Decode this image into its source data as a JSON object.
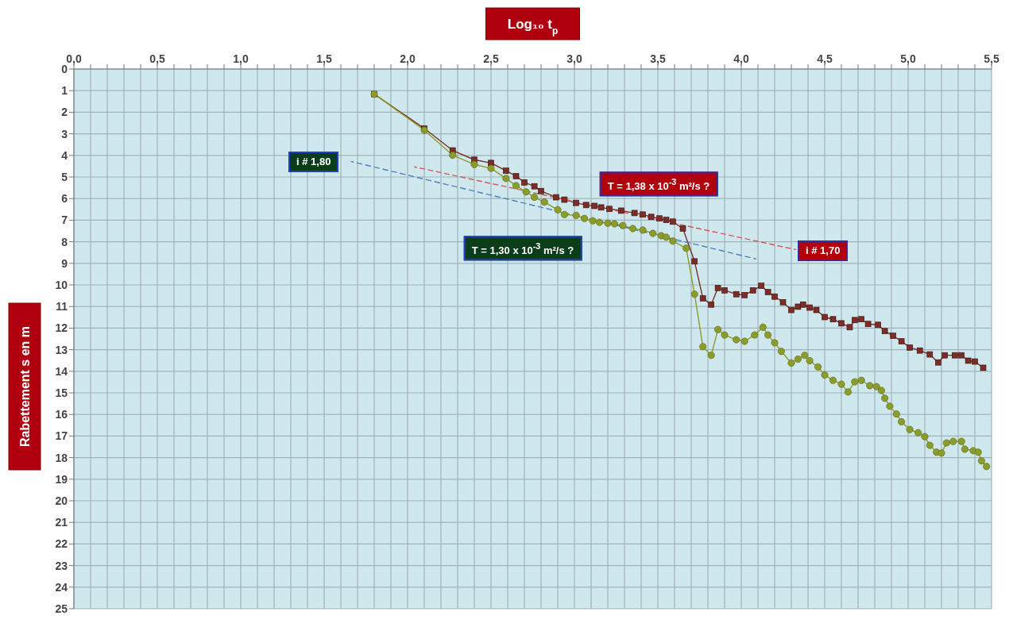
{
  "chart_data": {
    "type": "line",
    "xlabel": "Log₁₀ t$_{p}$",
    "ylabel": "Rabettement s en m",
    "xlim": [
      0,
      5.5
    ],
    "ylim": [
      25,
      0
    ],
    "grid": true,
    "xticks": [
      {
        "value": 0,
        "label": "0,0"
      },
      {
        "value": 0.1,
        "label": null
      },
      {
        "value": 0.2,
        "label": null
      },
      {
        "value": 0.3,
        "label": null
      },
      {
        "value": 0.4,
        "label": null
      },
      {
        "value": 0.5,
        "label": "0,5"
      },
      {
        "value": 0.6,
        "label": null
      },
      {
        "value": 0.7,
        "label": null
      },
      {
        "value": 0.8,
        "label": null
      },
      {
        "value": 0.9,
        "label": null
      },
      {
        "value": 1,
        "label": "1,0"
      },
      {
        "value": 1.1,
        "label": null
      },
      {
        "value": 1.2,
        "label": null
      },
      {
        "value": 1.3,
        "label": null
      },
      {
        "value": 1.4,
        "label": null
      },
      {
        "value": 1.5,
        "label": "1,5"
      },
      {
        "value": 1.6,
        "label": null
      },
      {
        "value": 1.7,
        "label": null
      },
      {
        "value": 1.8,
        "label": null
      },
      {
        "value": 1.9,
        "label": null
      },
      {
        "value": 2,
        "label": "2,0"
      },
      {
        "value": 2.1,
        "label": null
      },
      {
        "value": 2.2,
        "label": null
      },
      {
        "value": 2.3,
        "label": null
      },
      {
        "value": 2.4,
        "label": null
      },
      {
        "value": 2.5,
        "label": "2,5"
      },
      {
        "value": 2.6,
        "label": null
      },
      {
        "value": 2.7,
        "label": null
      },
      {
        "value": 2.8,
        "label": null
      },
      {
        "value": 2.9,
        "label": null
      },
      {
        "value": 3,
        "label": "3,0"
      },
      {
        "value": 3.1,
        "label": null
      },
      {
        "value": 3.2,
        "label": null
      },
      {
        "value": 3.3,
        "label": null
      },
      {
        "value": 3.4,
        "label": null
      },
      {
        "value": 3.5,
        "label": "3,5"
      },
      {
        "value": 3.6,
        "label": null
      },
      {
        "value": 3.7,
        "label": null
      },
      {
        "value": 3.8,
        "label": null
      },
      {
        "value": 3.9,
        "label": null
      },
      {
        "value": 4,
        "label": "4,0"
      },
      {
        "value": 4.1,
        "label": null
      },
      {
        "value": 4.2,
        "label": null
      },
      {
        "value": 4.3,
        "label": null
      },
      {
        "value": 4.4,
        "label": null
      },
      {
        "value": 4.5,
        "label": "4,5"
      },
      {
        "value": 4.6,
        "label": null
      },
      {
        "value": 4.7,
        "label": null
      },
      {
        "value": 4.8,
        "label": null
      },
      {
        "value": 4.9,
        "label": null
      },
      {
        "value": 5,
        "label": "5,0"
      },
      {
        "value": 5.1,
        "label": null
      },
      {
        "value": 5.2,
        "label": null
      },
      {
        "value": 5.3,
        "label": null
      },
      {
        "value": 5.4,
        "label": null
      },
      {
        "value": 5.5,
        "label": "5,5"
      }
    ],
    "yticks": [
      0,
      1,
      2,
      3,
      4,
      5,
      6,
      7,
      8,
      9,
      10,
      11,
      12,
      13,
      14,
      15,
      16,
      17,
      18,
      19,
      20,
      21,
      22,
      23,
      24,
      25
    ],
    "series": [
      {
        "color": "#7b2d26",
        "marker": "square",
        "x": [
          1.8,
          2.1,
          2.27,
          2.4,
          2.5,
          2.59,
          2.65,
          2.7,
          2.76,
          2.8,
          2.89,
          2.94,
          3.01,
          3.07,
          3.12,
          3.16,
          3.21,
          3.28,
          3.36,
          3.41,
          3.46,
          3.51,
          3.55,
          3.59,
          3.65,
          3.72,
          3.77,
          3.82,
          3.86,
          3.9,
          3.97,
          4.02,
          4.07,
          4.12,
          4.16,
          4.2,
          4.25,
          4.3,
          4.34,
          4.37,
          4.41,
          4.45,
          4.5,
          4.55,
          4.6,
          4.65,
          4.68,
          4.72,
          4.76,
          4.82,
          4.86,
          4.91,
          4.96,
          5.01,
          5.07,
          5.13,
          5.18,
          5.22,
          5.28,
          5.32,
          5.36,
          5.4,
          5.45
        ],
        "values": [
          1.16,
          2.75,
          3.77,
          4.2,
          4.35,
          4.71,
          4.96,
          5.25,
          5.43,
          5.65,
          5.94,
          6.05,
          6.2,
          6.3,
          6.34,
          6.41,
          6.48,
          6.56,
          6.67,
          6.74,
          6.85,
          6.92,
          6.99,
          7.07,
          7.39,
          8.91,
          10.62,
          10.91,
          10.14,
          10.25,
          10.43,
          10.47,
          10.25,
          10.04,
          10.33,
          10.54,
          10.8,
          11.16,
          11.01,
          10.91,
          11.05,
          11.16,
          11.49,
          11.59,
          11.78,
          11.96,
          11.63,
          11.59,
          11.81,
          11.85,
          12.14,
          12.36,
          12.61,
          12.9,
          13.04,
          13.22,
          13.59,
          13.26,
          13.26,
          13.26,
          13.51,
          13.55,
          13.84
        ]
      },
      {
        "color": "#8c9c2c",
        "marker": "circle",
        "x": [
          1.8,
          2.1,
          2.27,
          2.4,
          2.5,
          2.59,
          2.65,
          2.71,
          2.76,
          2.82,
          2.9,
          2.94,
          3.01,
          3.06,
          3.11,
          3.15,
          3.2,
          3.24,
          3.29,
          3.35,
          3.41,
          3.47,
          3.52,
          3.55,
          3.59,
          3.67,
          3.72,
          3.77,
          3.82,
          3.86,
          3.9,
          3.97,
          4.02,
          4.08,
          4.13,
          4.16,
          4.2,
          4.24,
          4.3,
          4.34,
          4.38,
          4.41,
          4.46,
          4.5,
          4.55,
          4.6,
          4.64,
          4.68,
          4.72,
          4.77,
          4.81,
          4.84,
          4.86,
          4.89,
          4.93,
          4.96,
          5.01,
          5.06,
          5.1,
          5.13,
          5.17,
          5.2,
          5.23,
          5.27,
          5.32,
          5.34,
          5.39,
          5.42,
          5.44,
          5.47
        ],
        "values": [
          1.16,
          2.83,
          3.99,
          4.42,
          4.6,
          5.07,
          5.4,
          5.69,
          5.94,
          6.16,
          6.52,
          6.74,
          6.78,
          6.92,
          7.03,
          7.1,
          7.14,
          7.17,
          7.25,
          7.39,
          7.46,
          7.61,
          7.72,
          7.79,
          7.97,
          8.3,
          10.43,
          12.86,
          13.26,
          12.07,
          12.32,
          12.54,
          12.61,
          12.32,
          11.96,
          12.32,
          12.68,
          13.08,
          13.62,
          13.44,
          13.26,
          13.51,
          13.8,
          14.17,
          14.42,
          14.6,
          14.96,
          14.49,
          14.42,
          14.67,
          14.71,
          14.89,
          15.25,
          15.62,
          15.98,
          16.34,
          16.7,
          16.85,
          17.03,
          17.43,
          17.75,
          17.79,
          17.32,
          17.25,
          17.25,
          17.61,
          17.68,
          17.75,
          18.15,
          18.41
        ]
      },
      {
        "color": "#d05a5a",
        "marker": "none",
        "line_style": "dashed",
        "x": [
          2.04,
          4.33
        ],
        "values": [
          4.53,
          8.37
        ]
      },
      {
        "color": "#4f81bd",
        "marker": "none",
        "line_style": "dashed",
        "x": [
          1.66,
          4.09
        ],
        "values": [
          4.28,
          8.8
        ]
      }
    ],
    "annotations": [
      "i # 1,80",
      "T = 1,38 x 10$^{-3}$ m²/s ?",
      "T = 1,30 x 10$^{-3}$ m²/s ?",
      "i # 1,70"
    ]
  }
}
